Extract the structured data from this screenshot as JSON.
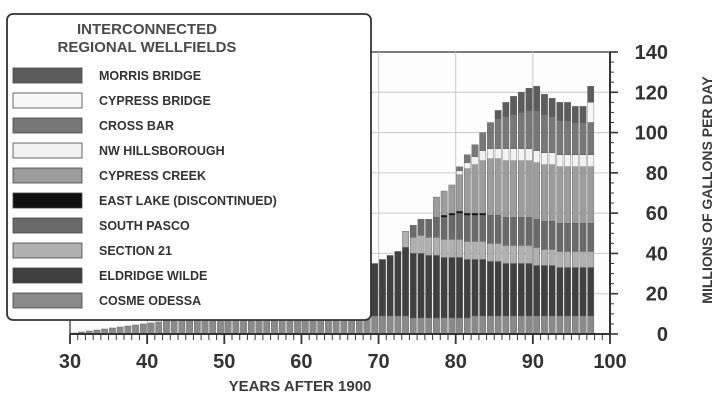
{
  "chart_data": {
    "type": "bar",
    "stacked": true,
    "legend_title_lines": [
      "INTERCONNECTED",
      "REGIONAL WELLFIELDS"
    ],
    "legend_placement": "top-left",
    "xlabel": "YEARS AFTER 1900",
    "ylabel": "MILLIONS OF GALLONS PER DAY",
    "xlim": [
      30,
      100
    ],
    "ylim": [
      0,
      140
    ],
    "x_ticks": [
      30,
      40,
      50,
      60,
      70,
      80,
      90,
      100
    ],
    "y_ticks": [
      0,
      20,
      40,
      60,
      80,
      100,
      120,
      140
    ],
    "grid": true,
    "x": [
      30,
      31,
      32,
      33,
      34,
      35,
      36,
      37,
      38,
      39,
      40,
      41,
      42,
      43,
      44,
      45,
      46,
      47,
      48,
      49,
      50,
      51,
      52,
      53,
      54,
      55,
      56,
      57,
      58,
      59,
      60,
      61,
      62,
      63,
      64,
      65,
      66,
      67,
      68,
      69,
      70,
      71,
      72,
      73,
      74,
      75,
      76,
      77,
      78,
      79,
      80,
      81,
      82,
      83,
      84,
      85,
      86,
      87,
      88,
      89,
      90,
      91,
      92,
      93,
      94,
      95,
      96,
      97
    ],
    "series": [
      {
        "name": "COSME ODESSA",
        "color": "#8a8a8a",
        "values": [
          0.5,
          1,
          1.5,
          2,
          2.5,
          3,
          3.5,
          4,
          4.5,
          5,
          5.5,
          6,
          6.5,
          7,
          7.5,
          8,
          8.5,
          9,
          9.5,
          10,
          10.5,
          11,
          11.5,
          12,
          12.5,
          13,
          14,
          16,
          17,
          18,
          18,
          18,
          19,
          18,
          14,
          12,
          10,
          10,
          9,
          9,
          9,
          9,
          9,
          9,
          8,
          8,
          8,
          8,
          8,
          8,
          8,
          8,
          9,
          9,
          9,
          9,
          9,
          9,
          9,
          9,
          9,
          9,
          9,
          9,
          9,
          9,
          9,
          9
        ]
      },
      {
        "name": "ELDRIDGE WILDE",
        "color": "#404040",
        "values": [
          0,
          0,
          0,
          0,
          0,
          0,
          0,
          0,
          0,
          0,
          0,
          0,
          0,
          0,
          0,
          0,
          0,
          0,
          0,
          0,
          0,
          0,
          0,
          0,
          0,
          0,
          4,
          6,
          6,
          7,
          8,
          10,
          12,
          12,
          16,
          20,
          22,
          23,
          25,
          26,
          28,
          30,
          32,
          34,
          32,
          32,
          31,
          31,
          30,
          30,
          30,
          29,
          28,
          28,
          27,
          27,
          26,
          26,
          26,
          26,
          25,
          25,
          25,
          24,
          24,
          24,
          24,
          24
        ]
      },
      {
        "name": "SECTION 21",
        "color": "#b0b0b0",
        "values": [
          0,
          0,
          0,
          0,
          0,
          0,
          0,
          0,
          0,
          0,
          0,
          0,
          0,
          0,
          0,
          0,
          0,
          0,
          0,
          0,
          0,
          0,
          0,
          0,
          0,
          0,
          0,
          0,
          0,
          0,
          0,
          0,
          0,
          0,
          0,
          0,
          0,
          0,
          0,
          0,
          0,
          0,
          0,
          8,
          8,
          9,
          9,
          9,
          9,
          9,
          9,
          9,
          9,
          9,
          9,
          9,
          9,
          9,
          9,
          9,
          9,
          8,
          8,
          8,
          8,
          8,
          8,
          8
        ]
      },
      {
        "name": "SOUTH PASCO",
        "color": "#6a6a6a",
        "values": [
          0,
          0,
          0,
          0,
          0,
          0,
          0,
          0,
          0,
          0,
          0,
          0,
          0,
          0,
          0,
          0,
          0,
          0,
          0,
          0,
          0,
          0,
          0,
          0,
          0,
          0,
          0,
          0,
          0,
          0,
          0,
          0,
          0,
          0,
          0,
          0,
          0,
          0,
          0,
          0,
          0,
          0,
          0,
          0,
          6,
          8,
          9,
          10,
          11,
          12,
          13,
          13,
          13,
          13,
          14,
          14,
          14,
          14,
          14,
          14,
          14,
          14,
          14,
          14,
          14,
          14,
          14,
          14
        ]
      },
      {
        "name": "EAST LAKE (DISCONTINUED)",
        "color": "#111111",
        "values": [
          0,
          0,
          0,
          0,
          0,
          0,
          0,
          0,
          0,
          0,
          0,
          0,
          0,
          0,
          0,
          0,
          0,
          0,
          0,
          0,
          0,
          0,
          0,
          0,
          0,
          0,
          0,
          0,
          0,
          0,
          0,
          0,
          0,
          0,
          0,
          0,
          0,
          0,
          0,
          0,
          0,
          0,
          0,
          0,
          0,
          0,
          0,
          0,
          1,
          1,
          1,
          1,
          1,
          1,
          0,
          0,
          0,
          0,
          0,
          0,
          0,
          0,
          0,
          0,
          0,
          0,
          0,
          0
        ]
      },
      {
        "name": "CYPRESS CREEK",
        "color": "#9c9c9c",
        "values": [
          0,
          0,
          0,
          0,
          0,
          0,
          0,
          0,
          0,
          0,
          0,
          0,
          0,
          0,
          0,
          0,
          0,
          0,
          0,
          0,
          0,
          0,
          0,
          0,
          0,
          0,
          0,
          0,
          0,
          0,
          0,
          0,
          0,
          0,
          0,
          0,
          0,
          0,
          0,
          0,
          0,
          0,
          0,
          0,
          0,
          0,
          0,
          10,
          12,
          14,
          18,
          22,
          24,
          26,
          28,
          28,
          28,
          28,
          28,
          28,
          28,
          28,
          28,
          28,
          28,
          28,
          28,
          28
        ]
      },
      {
        "name": "NW HILLSBOROUGH",
        "color": "#f2f2f2",
        "values": [
          0,
          0,
          0,
          0,
          0,
          0,
          0,
          0,
          0,
          0,
          0,
          0,
          0,
          0,
          0,
          0,
          0,
          0,
          0,
          0,
          0,
          0,
          0,
          0,
          0,
          0,
          0,
          0,
          0,
          0,
          0,
          0,
          0,
          0,
          0,
          0,
          0,
          0,
          0,
          0,
          0,
          0,
          0,
          0,
          0,
          0,
          0,
          0,
          0,
          0,
          2,
          3,
          4,
          5,
          5,
          5,
          6,
          6,
          6,
          6,
          6,
          6,
          6,
          6,
          6,
          6,
          6,
          6
        ]
      },
      {
        "name": "CROSS BAR",
        "color": "#777777",
        "values": [
          0,
          0,
          0,
          0,
          0,
          0,
          0,
          0,
          0,
          0,
          0,
          0,
          0,
          0,
          0,
          0,
          0,
          0,
          0,
          0,
          0,
          0,
          0,
          0,
          0,
          0,
          0,
          0,
          0,
          0,
          0,
          0,
          0,
          0,
          0,
          0,
          0,
          0,
          0,
          0,
          0,
          0,
          0,
          0,
          0,
          0,
          0,
          0,
          0,
          0,
          2,
          4,
          6,
          9,
          13,
          15,
          16,
          17,
          18,
          19,
          20,
          19,
          18,
          17,
          17,
          16,
          16,
          16
        ]
      },
      {
        "name": "CYPRESS BRIDGE",
        "color": "#f7f7f7",
        "values": [
          0,
          0,
          0,
          0,
          0,
          0,
          0,
          0,
          0,
          0,
          0,
          0,
          0,
          0,
          0,
          0,
          0,
          0,
          0,
          0,
          0,
          0,
          0,
          0,
          0,
          0,
          0,
          0,
          0,
          0,
          0,
          0,
          0,
          0,
          0,
          0,
          0,
          0,
          0,
          0,
          0,
          0,
          0,
          0,
          0,
          0,
          0,
          0,
          0,
          0,
          0,
          0,
          0,
          0,
          0,
          0,
          0,
          0,
          0,
          0,
          0,
          0,
          0,
          0,
          0,
          0,
          0,
          10
        ]
      },
      {
        "name": "MORRIS BRIDGE",
        "color": "#5c5c5c",
        "values": [
          0,
          0,
          0,
          0,
          0,
          0,
          0,
          0,
          0,
          0,
          0,
          0,
          0,
          0,
          0,
          0,
          0,
          0,
          0,
          0,
          0,
          0,
          0,
          0,
          0,
          0,
          0,
          0,
          0,
          0,
          0,
          0,
          0,
          0,
          0,
          0,
          0,
          0,
          0,
          0,
          0,
          0,
          0,
          0,
          0,
          0,
          0,
          0,
          0,
          0,
          0,
          0,
          0,
          0,
          0,
          4,
          7,
          9,
          10,
          11,
          12,
          10,
          9,
          9,
          9,
          8,
          8,
          8
        ]
      }
    ]
  }
}
